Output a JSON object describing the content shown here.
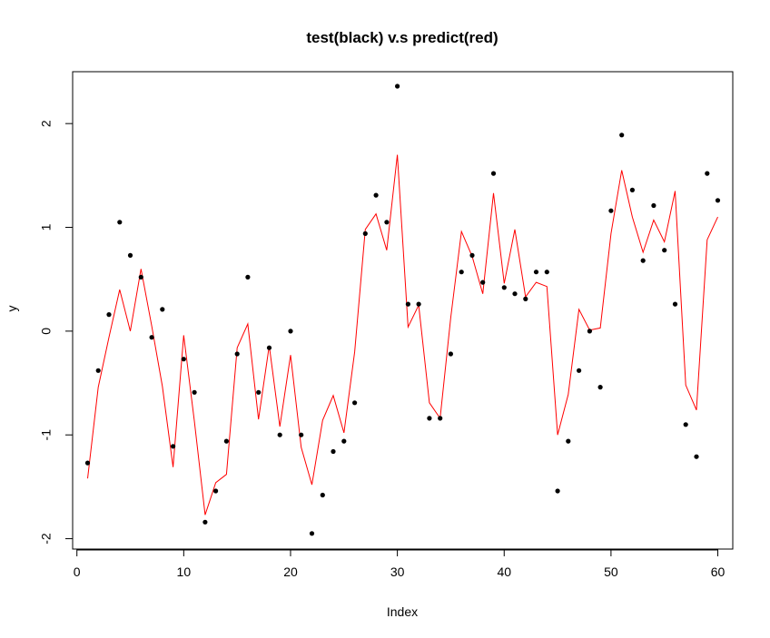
{
  "chart_data": {
    "type": "scatter",
    "title": "test(black) v.s predict(red)",
    "xlabel": "Index",
    "ylabel": "y",
    "xlim": [
      -0.4,
      61.4
    ],
    "ylim": [
      -2.1,
      2.5
    ],
    "x_ticks": [
      0,
      10,
      20,
      30,
      40,
      50,
      60
    ],
    "x_tick_labels": [
      "0",
      "10",
      "20",
      "30",
      "40",
      "50",
      "60"
    ],
    "y_ticks": [
      -2,
      -1,
      0,
      1,
      2
    ],
    "y_tick_labels": [
      "-2",
      "-1",
      "0",
      "1",
      "2"
    ],
    "grid": false,
    "legend": "none",
    "series": [
      {
        "name": "test",
        "color": "#000000",
        "style": "points",
        "x": [
          1,
          2,
          3,
          4,
          5,
          6,
          7,
          8,
          9,
          10,
          11,
          12,
          13,
          14,
          15,
          16,
          17,
          18,
          19,
          20,
          21,
          22,
          23,
          24,
          25,
          26,
          27,
          28,
          29,
          30,
          31,
          32,
          33,
          34,
          35,
          36,
          37,
          38,
          39,
          40,
          41,
          42,
          43,
          44,
          45,
          46,
          47,
          48,
          49,
          50,
          51,
          52,
          53,
          54,
          55,
          56,
          57,
          58,
          59,
          60
        ],
        "values": [
          -1.27,
          -0.38,
          0.16,
          1.05,
          0.73,
          0.52,
          -0.06,
          0.21,
          -1.11,
          -0.27,
          -0.59,
          -1.84,
          -1.54,
          -1.06,
          -0.22,
          0.52,
          -0.59,
          -0.16,
          -1.0,
          0.0,
          -1.0,
          -1.95,
          -1.58,
          -1.16,
          -1.06,
          -0.69,
          0.94,
          1.31,
          1.05,
          2.36,
          0.26,
          0.26,
          -0.84,
          -0.84,
          -0.22,
          0.57,
          0.73,
          0.47,
          1.52,
          0.42,
          0.36,
          0.31,
          0.57,
          0.57,
          -1.54,
          -1.06,
          -0.38,
          0.0,
          -0.54,
          1.16,
          1.89,
          1.36,
          0.68,
          1.21,
          0.78,
          0.26,
          -0.9,
          -1.21,
          1.52,
          1.26
        ]
      },
      {
        "name": "predict",
        "color": "#ff0000",
        "style": "line",
        "x": [
          1,
          2,
          3,
          4,
          5,
          6,
          7,
          8,
          9,
          10,
          11,
          12,
          13,
          14,
          15,
          16,
          17,
          18,
          19,
          20,
          21,
          22,
          23,
          24,
          25,
          26,
          27,
          28,
          29,
          30,
          31,
          32,
          33,
          34,
          35,
          36,
          37,
          38,
          39,
          40,
          41,
          42,
          43,
          44,
          45,
          46,
          47,
          48,
          49,
          50,
          51,
          52,
          53,
          54,
          55,
          56,
          57,
          58,
          59,
          60
        ],
        "values": [
          -1.42,
          -0.54,
          -0.06,
          0.4,
          0.0,
          0.6,
          0.05,
          -0.53,
          -1.31,
          -0.04,
          -0.87,
          -1.77,
          -1.46,
          -1.38,
          -0.16,
          0.07,
          -0.85,
          -0.14,
          -0.92,
          -0.23,
          -1.12,
          -1.48,
          -0.86,
          -0.62,
          -0.98,
          -0.2,
          0.98,
          1.13,
          0.78,
          1.7,
          0.04,
          0.25,
          -0.69,
          -0.84,
          0.13,
          0.96,
          0.72,
          0.36,
          1.33,
          0.46,
          0.98,
          0.33,
          0.47,
          0.43,
          -1.0,
          -0.61,
          0.21,
          0.01,
          0.03,
          0.94,
          1.55,
          1.1,
          0.76,
          1.07,
          0.86,
          1.35,
          -0.52,
          -0.76,
          0.88,
          1.1
        ]
      }
    ]
  }
}
